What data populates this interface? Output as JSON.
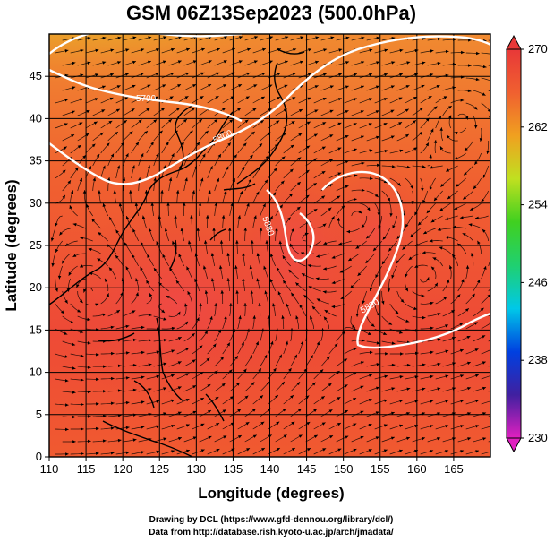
{
  "chart_data": {
    "type": "heatmap",
    "title": "GSM 06Z13Sep2023 (500.0hPa)",
    "xlabel": "Longitude (degrees)",
    "ylabel": "Latitude  (degrees)",
    "xlim": [
      110,
      170
    ],
    "ylim": [
      0,
      50
    ],
    "x_ticks": [
      110,
      115,
      120,
      125,
      130,
      135,
      140,
      145,
      150,
      155,
      160,
      165
    ],
    "y_ticks": [
      0,
      5,
      10,
      15,
      20,
      25,
      30,
      35,
      40,
      45
    ],
    "grid": true,
    "colorbar": {
      "min": 230,
      "max": 270,
      "ticks": [
        230,
        238,
        246,
        254,
        262,
        270
      ],
      "colors": [
        "#e020c0",
        "#4020a0",
        "#0040e0",
        "#00c8e8",
        "#20d070",
        "#40d020",
        "#c0e020",
        "#f0a020",
        "#f06030",
        "#e83838"
      ]
    },
    "contours": [
      {
        "label": "5700"
      },
      {
        "label": "5800"
      },
      {
        "label": "5880"
      },
      {
        "label": "5880"
      }
    ],
    "field_description": "500hPa temperature (K) with streamlines and geopotential height contours",
    "credits": [
      "Drawing by DCL (https://www.gfd-dennou.org/library/dcl/)",
      "Data from http://database.rish.kyoto-u.ac.jp/arch/jmadata/"
    ]
  }
}
